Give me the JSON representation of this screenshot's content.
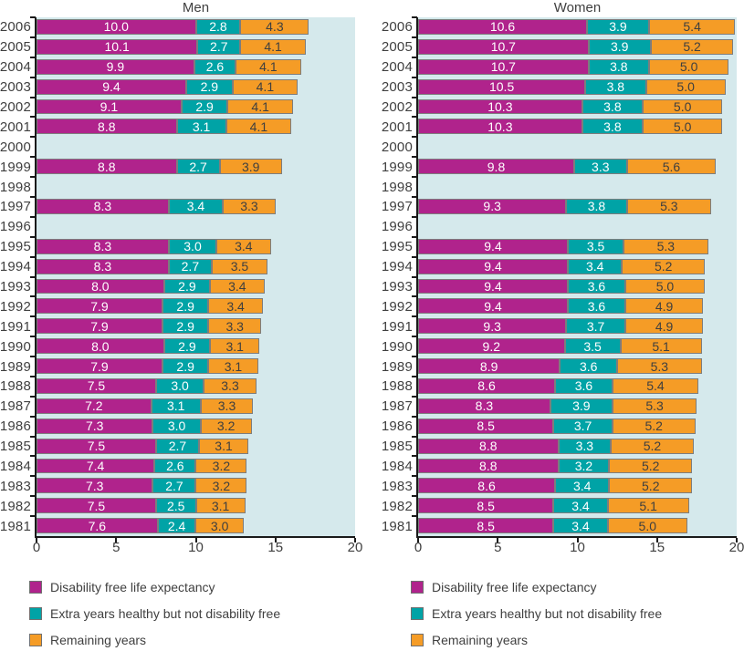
{
  "page": {
    "background": "#ffffff"
  },
  "colors": {
    "plot_background": "#D5E9EC",
    "axis": "#1a1a1a",
    "text": "#3f3f3f",
    "label_on_dark_segment": "#ffffff",
    "label_on_orange_segment": "#3f3f3f",
    "magenta": "#B0238C",
    "teal": "#00A3A6",
    "orange": "#F59C26"
  },
  "legend": {
    "items": [
      {
        "label": "Disability free life expectancy"
      },
      {
        "label": "Extra years healthy but not disability free"
      },
      {
        "label": "Remaining years"
      }
    ]
  },
  "chart_data": [
    {
      "type": "bar",
      "orientation": "horizontal",
      "stacked": true,
      "title": "Men",
      "xlim": [
        0,
        20
      ],
      "xticks": [
        0,
        5,
        10,
        15,
        20
      ],
      "grid": false,
      "legend_position": "bottom",
      "categories": [
        2006,
        2005,
        2004,
        2003,
        2002,
        2001,
        2000,
        1999,
        1998,
        1997,
        1996,
        1995,
        1994,
        1993,
        1992,
        1991,
        1990,
        1989,
        1988,
        1987,
        1986,
        1985,
        1984,
        1983,
        1982,
        1981
      ],
      "series": [
        {
          "name": "Disability free life expectancy",
          "key": "disability-free",
          "color": "#B0238C",
          "values": [
            10.0,
            10.1,
            9.9,
            9.4,
            9.1,
            8.8,
            null,
            8.8,
            null,
            8.3,
            null,
            8.3,
            8.3,
            8.0,
            7.9,
            7.9,
            8.0,
            7.9,
            7.5,
            7.2,
            7.3,
            7.5,
            7.4,
            7.3,
            7.5,
            7.6
          ]
        },
        {
          "name": "Extra years healthy but not disability free",
          "key": "extra-healthy",
          "color": "#00A3A6",
          "values": [
            2.8,
            2.7,
            2.6,
            2.9,
            2.9,
            3.1,
            null,
            2.7,
            null,
            3.4,
            null,
            3.0,
            2.7,
            2.9,
            2.9,
            2.9,
            2.9,
            2.9,
            3.0,
            3.1,
            3.0,
            2.7,
            2.6,
            2.7,
            2.5,
            2.4
          ]
        },
        {
          "name": "Remaining years",
          "key": "remaining",
          "color": "#F59C26",
          "values": [
            4.3,
            4.1,
            4.1,
            4.1,
            4.1,
            4.1,
            null,
            3.9,
            null,
            3.3,
            null,
            3.4,
            3.5,
            3.4,
            3.4,
            3.3,
            3.1,
            3.1,
            3.3,
            3.3,
            3.2,
            3.1,
            3.2,
            3.2,
            3.1,
            3.0
          ]
        }
      ]
    },
    {
      "type": "bar",
      "orientation": "horizontal",
      "stacked": true,
      "title": "Women",
      "xlim": [
        0,
        20
      ],
      "xticks": [
        0,
        5,
        10,
        15,
        20
      ],
      "grid": false,
      "legend_position": "bottom",
      "categories": [
        2006,
        2005,
        2004,
        2003,
        2002,
        2001,
        2000,
        1999,
        1998,
        1997,
        1996,
        1995,
        1994,
        1993,
        1992,
        1991,
        1990,
        1989,
        1988,
        1987,
        1986,
        1985,
        1984,
        1983,
        1982,
        1981
      ],
      "series": [
        {
          "name": "Disability free life expectancy",
          "key": "disability-free",
          "color": "#B0238C",
          "values": [
            10.6,
            10.7,
            10.7,
            10.5,
            10.3,
            10.3,
            null,
            9.8,
            null,
            9.3,
            null,
            9.4,
            9.4,
            9.4,
            9.4,
            9.3,
            9.2,
            8.9,
            8.6,
            8.3,
            8.5,
            8.8,
            8.8,
            8.6,
            8.5,
            8.5
          ]
        },
        {
          "name": "Extra years healthy but not disability free",
          "key": "extra-healthy",
          "color": "#00A3A6",
          "values": [
            3.9,
            3.9,
            3.8,
            3.8,
            3.8,
            3.8,
            null,
            3.3,
            null,
            3.8,
            null,
            3.5,
            3.4,
            3.6,
            3.6,
            3.7,
            3.5,
            3.6,
            3.6,
            3.9,
            3.7,
            3.3,
            3.2,
            3.4,
            3.4,
            3.4
          ]
        },
        {
          "name": "Remaining years",
          "key": "remaining",
          "color": "#F59C26",
          "values": [
            5.4,
            5.2,
            5.0,
            5.0,
            5.0,
            5.0,
            null,
            5.6,
            null,
            5.3,
            null,
            5.3,
            5.2,
            5.0,
            4.9,
            4.9,
            5.1,
            5.3,
            5.4,
            5.3,
            5.2,
            5.2,
            5.2,
            5.2,
            5.1,
            5.0
          ]
        }
      ]
    }
  ]
}
